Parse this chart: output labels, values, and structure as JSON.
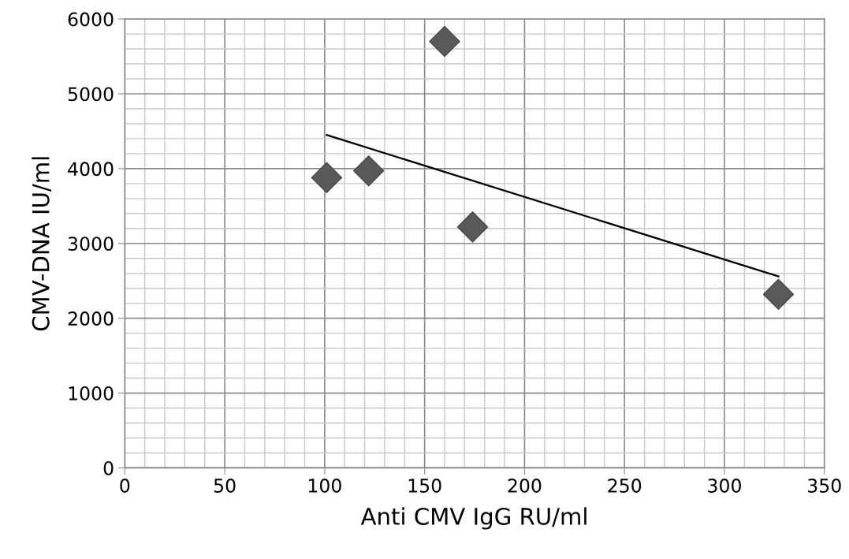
{
  "chart_data": {
    "type": "scatter",
    "xlabel": "Anti CMV IgG RU/ml",
    "ylabel": "CMV-DNA IU/ml",
    "x": [
      101,
      122,
      160,
      174,
      327
    ],
    "series": [
      {
        "color": "#595959",
        "marker": "diamond",
        "values": [
          3880,
          3970,
          5700,
          3220,
          2320
        ]
      },
      {
        "type": "line",
        "color": "#000000",
        "marker": "none",
        "x": [
          101,
          327
        ],
        "values": [
          4450,
          2560
        ]
      }
    ],
    "xlim": [
      0,
      350
    ],
    "xticks": [
      0,
      50,
      100,
      150,
      200,
      250,
      300,
      350
    ],
    "ylim": [
      0,
      6000
    ],
    "yticks": [
      0,
      1000,
      2000,
      3000,
      4000,
      5000,
      6000
    ],
    "grid": true
  }
}
